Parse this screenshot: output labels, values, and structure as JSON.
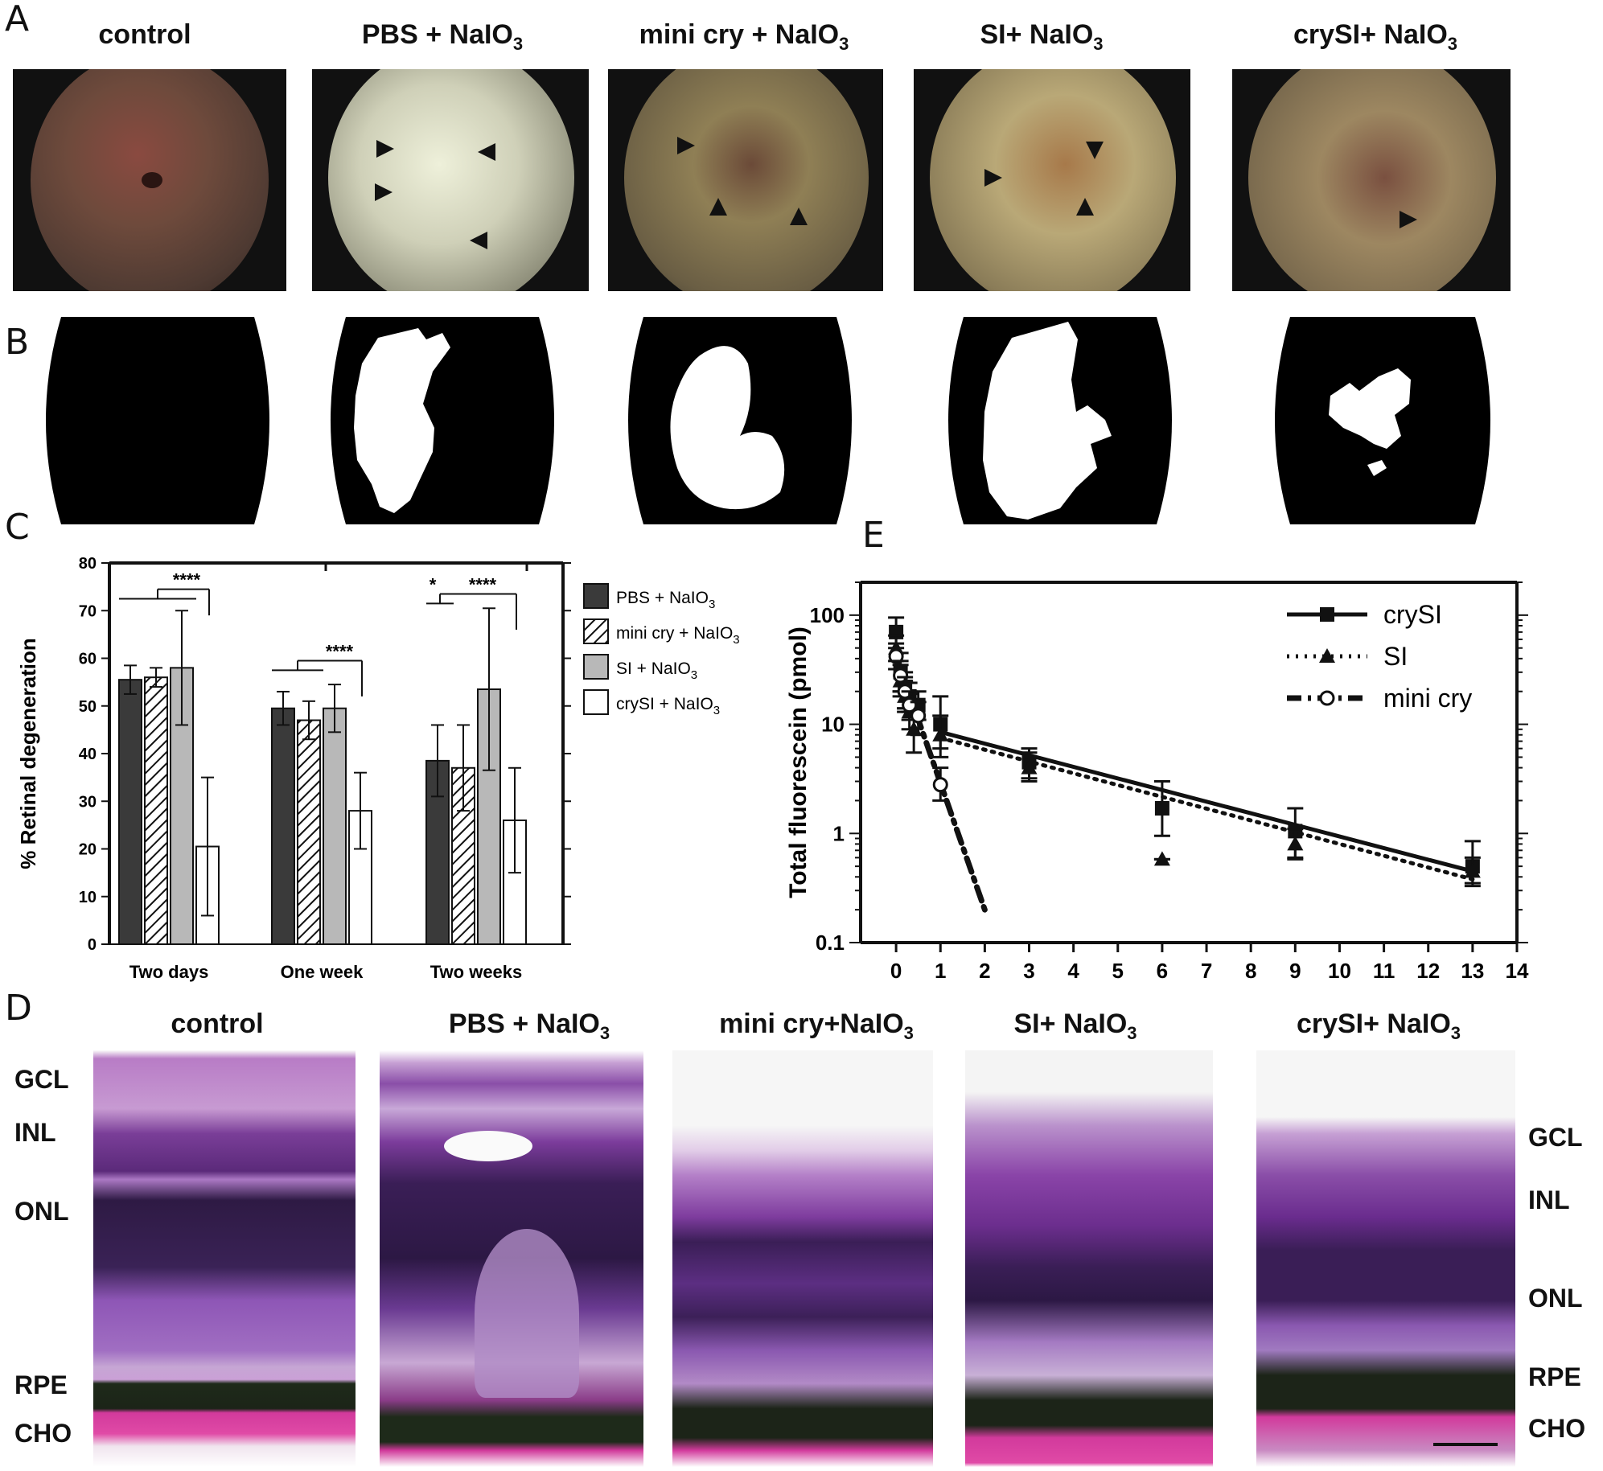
{
  "panel_letters": {
    "a": "A",
    "b": "B",
    "c": "C",
    "d": "D",
    "e": "E"
  },
  "panel_a": {
    "titles": [
      {
        "main": "control",
        "sub": ""
      },
      {
        "main": "PBS + NaIO",
        "sub": "3"
      },
      {
        "main": "mini cry + NaIO",
        "sub": "3"
      },
      {
        "main": "SI+ NaIO",
        "sub": "3"
      },
      {
        "main": "crySI+ NaIO",
        "sub": "3"
      }
    ]
  },
  "panel_d": {
    "titles": [
      {
        "main": "control",
        "sub": ""
      },
      {
        "main": "PBS + NaIO",
        "sub": "3"
      },
      {
        "main": "mini cry+NaIO",
        "sub": "3"
      },
      {
        "main": "SI+ NaIO",
        "sub": "3"
      },
      {
        "main": "crySI+ NaIO",
        "sub": "3"
      }
    ],
    "left_layers": [
      "GCL",
      "INL",
      "ONL",
      "RPE",
      "CHO"
    ],
    "right_layers": [
      "GCL",
      "INL",
      "ONL",
      "RPE",
      "CHO"
    ]
  },
  "chart_data": [
    {
      "panel": "C",
      "type": "bar",
      "ylabel": "% Retinal degeneration",
      "ylim": [
        0,
        80
      ],
      "yticks": [
        0,
        10,
        20,
        30,
        40,
        50,
        60,
        70,
        80
      ],
      "categories": [
        "Two days",
        "One week",
        "Two weeks"
      ],
      "series": [
        {
          "name": "PBS + NaIO3",
          "legend_main": "PBS + NaIO",
          "legend_sub": "3",
          "fill": "#3a3a3a",
          "pattern": "solid",
          "values": [
            55.5,
            49.5,
            38.5
          ],
          "errors": [
            3,
            3.5,
            7.5
          ]
        },
        {
          "name": "mini cry + NaIO3",
          "legend_main": "mini cry + NaIO",
          "legend_sub": "3",
          "fill": "#ffffff",
          "pattern": "hatch",
          "values": [
            56,
            47,
            37
          ],
          "errors": [
            2,
            4,
            9
          ]
        },
        {
          "name": "SI + NaIO3",
          "legend_main": "SI + NaIO",
          "legend_sub": "3",
          "fill": "#b8b8b8",
          "pattern": "solid",
          "values": [
            58,
            49.5,
            53.5
          ],
          "errors": [
            12,
            5,
            17
          ]
        },
        {
          "name": "crySI + NaIO3",
          "legend_main": "crySI + NaIO",
          "legend_sub": "3",
          "fill": "#ffffff",
          "pattern": "solid",
          "values": [
            20.5,
            28,
            26
          ],
          "errors": [
            14.5,
            8,
            11
          ]
        }
      ],
      "significance": [
        {
          "group": 0,
          "label": "****"
        },
        {
          "group": 1,
          "label": "****"
        },
        {
          "group": 2,
          "label": "*"
        },
        {
          "group": 2,
          "label": "****"
        }
      ],
      "legend_position": "right"
    },
    {
      "panel": "E",
      "type": "line",
      "ylabel": "Total fluorescein (pmol)",
      "yscale": "log",
      "ylim": [
        0.1,
        200
      ],
      "yticks": [
        0.1,
        1,
        10,
        100
      ],
      "ytick_labels": [
        "0.1",
        "1",
        "10",
        "100"
      ],
      "xlim": [
        -0.8,
        14
      ],
      "xticks": [
        "0",
        "1",
        "2",
        "3",
        "4",
        "5",
        "6",
        "7",
        "8",
        "9",
        "10",
        "11",
        "12",
        "13",
        "14"
      ],
      "legend_position": "top-right",
      "series": [
        {
          "name": "crySI",
          "marker": "square",
          "line": "solid",
          "x": [
            0,
            0.1,
            0.2,
            0.3,
            0.5,
            1,
            3,
            6,
            9,
            13
          ],
          "y": [
            70,
            30,
            22,
            18,
            15,
            10,
            4.5,
            1.7,
            1.05,
            0.5
          ],
          "err_hi": [
            95,
            45,
            30,
            24,
            20,
            18,
            6,
            3,
            1.7,
            0.85
          ],
          "err_lo": [
            50,
            20,
            14,
            13,
            11,
            6,
            3.2,
            0.95,
            0.6,
            0.33
          ],
          "fit_x": [
            1,
            13
          ],
          "fit_y": [
            8.5,
            0.45
          ]
        },
        {
          "name": "SI",
          "marker": "triangle",
          "line": "dotted",
          "x": [
            0,
            0.1,
            0.2,
            0.3,
            0.4,
            1,
            3,
            6,
            9,
            13
          ],
          "y": [
            50,
            25,
            18,
            13,
            9,
            8,
            4,
            0.58,
            0.8,
            0.45
          ],
          "err_hi": [
            65,
            35,
            25,
            19,
            14,
            12,
            5.5,
            0.58,
            1.1,
            0.6
          ],
          "err_lo": [
            38,
            18,
            13,
            9,
            5.5,
            5,
            3,
            0.58,
            0.58,
            0.35
          ],
          "fit_x": [
            1,
            13
          ],
          "fit_y": [
            7.5,
            0.38
          ]
        },
        {
          "name": "mini cry",
          "marker": "circle-open",
          "line": "dashdot",
          "x": [
            0,
            0.1,
            0.2,
            0.3,
            0.5,
            1
          ],
          "y": [
            42,
            28,
            20,
            15,
            12,
            2.8
          ],
          "err_hi": [
            55,
            38,
            27,
            20,
            16,
            4
          ],
          "err_lo": [
            32,
            20,
            14,
            11,
            8,
            2
          ],
          "fit_x": [
            0,
            2
          ],
          "fit_y": [
            42,
            0.2
          ]
        }
      ]
    }
  ],
  "colors": {
    "fundus_control": "#6e4a3c",
    "fundus_pbs": "#cfd0b8",
    "fundus_minicry": "#8f7f55",
    "fundus_si": "#b9a877",
    "fundus_crysi": "#9d8761",
    "histo_purple": "#8a3fa3",
    "histo_dark": "#3a1a4a",
    "histo_pink": "#d0389a",
    "histo_choroid_dark": "#1c2418"
  }
}
